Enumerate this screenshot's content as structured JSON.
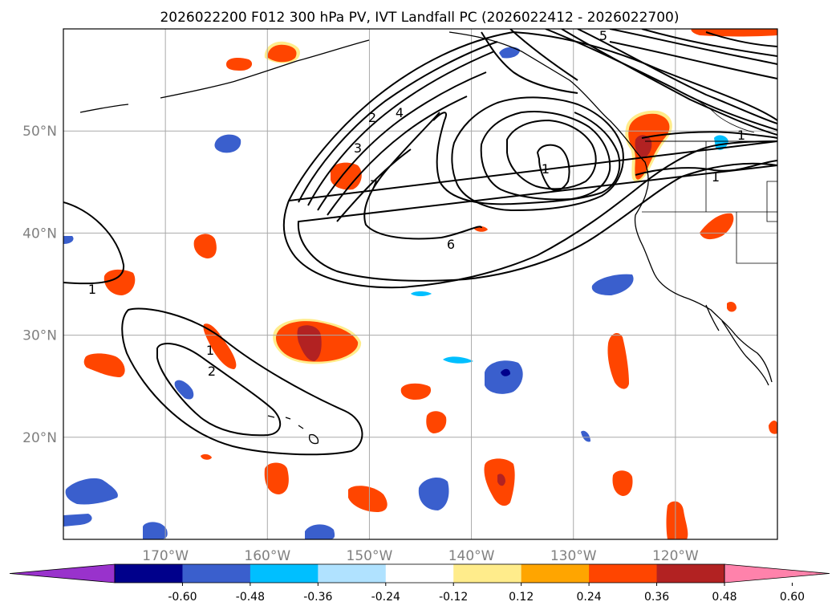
{
  "chart_data": {
    "type": "contour-map",
    "title": "2026022200 F012 300 hPa PV, IVT Landfall PC (2026022412 - 2026022700)",
    "longitude_ticks": [
      "170°W",
      "160°W",
      "150°W",
      "140°W",
      "130°W",
      "120°W"
    ],
    "longitude_values": [
      -170,
      -160,
      -150,
      -140,
      -130,
      -120
    ],
    "latitude_ticks": [
      "50°N",
      "40°N",
      "30°N",
      "20°N"
    ],
    "latitude_values": [
      50,
      40,
      30,
      20
    ],
    "lon_range": [
      -180,
      -110
    ],
    "lat_range": [
      10,
      60
    ],
    "contour_labels": [
      "1",
      "2",
      "3",
      "4",
      "5",
      "6",
      "7",
      "1",
      "1",
      "1",
      "1",
      "2"
    ],
    "colorbar": {
      "ticks": [
        "-0.60",
        "-0.48",
        "-0.36",
        "-0.24",
        "-0.12",
        "0.12",
        "0.24",
        "0.36",
        "0.48",
        "0.60"
      ],
      "levels": [
        -0.6,
        -0.48,
        -0.36,
        -0.24,
        -0.12,
        0.12,
        0.24,
        0.36,
        0.48,
        0.6
      ],
      "colors": [
        "#9932cc",
        "#00008b",
        "#3a5fcd",
        "#00bfff",
        "#b0e2ff",
        "#ffffff",
        "#ffec8b",
        "#ffa500",
        "#ff4500",
        "#b22222",
        "#ff82ab"
      ],
      "extend": "both"
    }
  }
}
